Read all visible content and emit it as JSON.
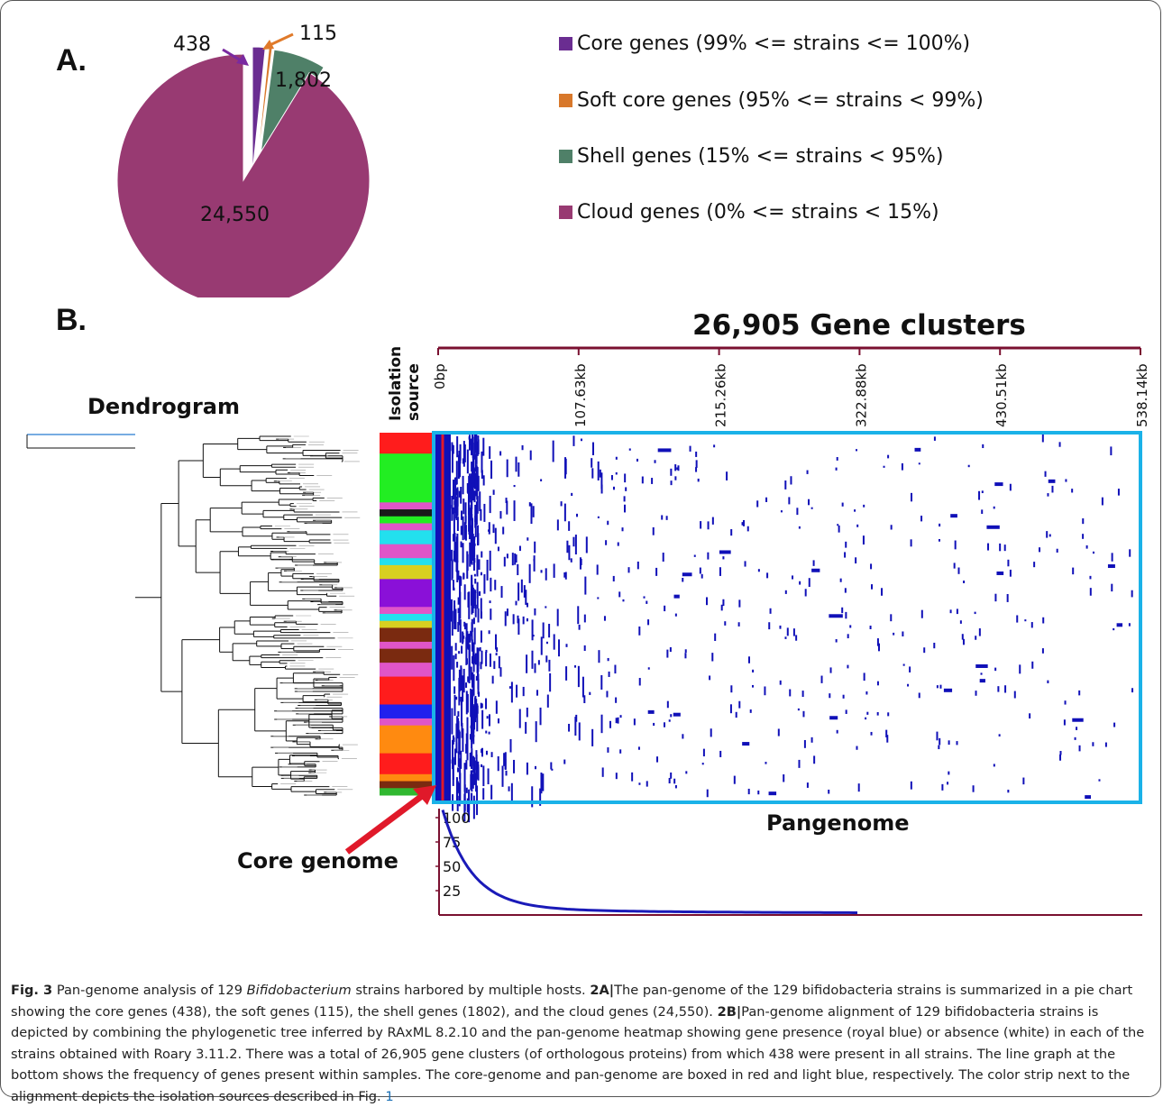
{
  "panel_a": {
    "label": "A.",
    "chart_data": {
      "type": "pie",
      "title": "",
      "categories": [
        "Core genes",
        "Soft core genes",
        "Shell genes",
        "Cloud genes"
      ],
      "values": [
        438,
        115,
        1802,
        24550
      ],
      "value_labels": [
        "438",
        "115",
        "1,802",
        "24,550"
      ],
      "colors": [
        "#6a2d91",
        "#d8782b",
        "#4f8068",
        "#983a72"
      ],
      "exploded": [
        "Core genes",
        "Soft core genes",
        "Shell genes"
      ],
      "legend_position": "right",
      "legend": [
        "Core genes (99% <= strains <= 100%)",
        "Soft core genes (95% <= strains < 99%)",
        "Shell genes (15% <= strains < 95%)",
        "Cloud genes (0% <= strains < 15%)"
      ]
    }
  },
  "panel_b": {
    "label": "B.",
    "title": "26,905 Gene clusters",
    "dendrogram_label": "Dendrogram",
    "isolation_source_label": [
      "Isolation",
      "source"
    ],
    "pangenome_label": "Pangenome",
    "core_genome_label": "Core genome",
    "colors": {
      "heatmap_cells": "#1010b8",
      "pangenome_box": "#1ab2e8",
      "core_box": "#e0192a",
      "axis": "#7a1030"
    },
    "axis_ticks": [
      "0bp",
      "107.63kb",
      "215.26kb",
      "322.88kb",
      "430.51kb",
      "538.14kb"
    ],
    "isolation_source_colors": [
      "#ff1c1c",
      "#22ee22",
      "#e055c8",
      "#22e0ee",
      "#d8d020",
      "#8a10d8",
      "#7a2a10",
      "#2020ee",
      "#ff8a10",
      "#1a1a1a",
      "#30b830"
    ],
    "frequency_chart": {
      "type": "line",
      "y_ticks": [
        "100",
        "75",
        "50",
        "25"
      ],
      "ylim": [
        0,
        100
      ]
    }
  },
  "caption": {
    "fig_label": "Fig. 3",
    "text1": " Pan-genome analysis of 129 ",
    "genus": "Bifidobacterium",
    "text2": " strains harbored by multiple hosts. ",
    "label_2a": "2A|",
    "text3": "The pan-genome of the 129 bifidobacteria strains is summarized in a pie chart showing the core genes (438), the soft genes (115), the shell genes (1802), and the cloud genes (24,550). ",
    "label_2b": "2B|",
    "text4": "Pan-genome alignment of 129 bifidobacteria strains is depicted by combining the phylogenetic tree inferred by RAxML 8.2.10 and the pan-genome heatmap showing gene presence (royal blue) or absence (white) in each of the strains obtained with Roary 3.11.2. There was a total of 26,905 gene clusters (of orthologous proteins) from which 438 were present in all strains. The line graph at the bottom shows the frequency of genes present within samples. The core-genome and pan-genome are boxed in red and light blue, respectively. The color strip next to the alignment depicts the isolation sources described in Fig. ",
    "fig_ref": "1"
  }
}
